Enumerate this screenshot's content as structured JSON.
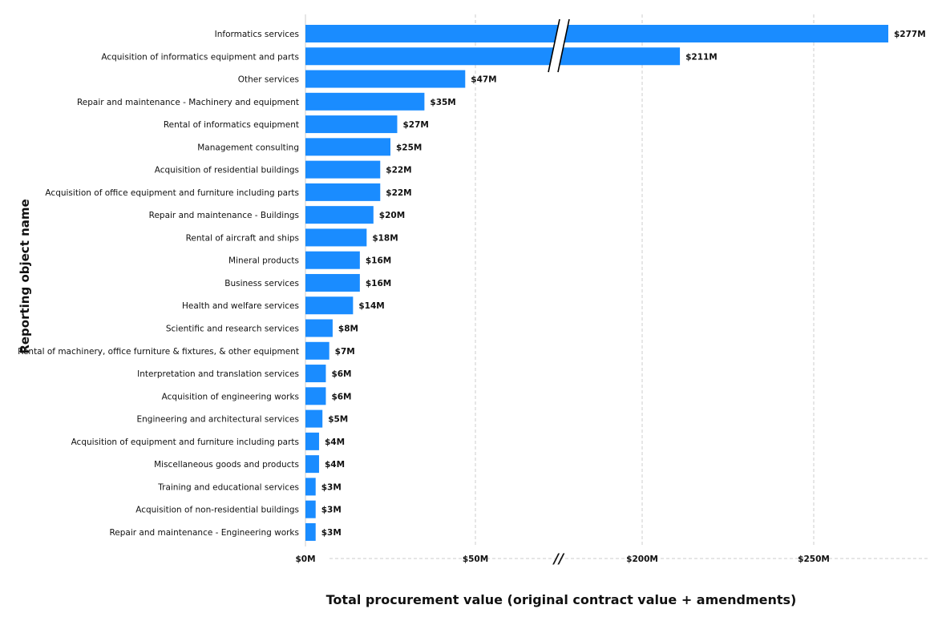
{
  "chart_data": {
    "type": "bar",
    "orientation": "horizontal",
    "xlabel": "Total procurement value (original contract value + amendments)",
    "ylabel": "Reporting object name",
    "axis_break": [
      75,
      175
    ],
    "xlim": [
      0,
      272
    ],
    "grid": true,
    "bar_color": "#1a8cff",
    "xticks": [
      {
        "value": 0,
        "label": "$0M"
      },
      {
        "value": 50,
        "label": "$50M"
      },
      {
        "value": 200,
        "label": "$200M"
      },
      {
        "value": 250,
        "label": "$250M"
      }
    ],
    "break_label": "//",
    "categories": [
      "Informatics services",
      "Acquisition of informatics equipment and parts",
      "Other services",
      "Repair and maintenance - Machinery and equipment",
      "Rental of informatics equipment",
      "Management consulting",
      "Acquisition of residential buildings",
      "Acquisition of office equipment and furniture including parts",
      "Repair and maintenance - Buildings",
      "Rental of aircraft and ships",
      "Mineral products",
      "Business services",
      "Health and welfare services",
      "Scientific and research services",
      "Rental of machinery, office furniture & fixtures, & other equipment",
      "Interpretation and translation services",
      "Acquisition of engineering works",
      "Engineering and architectural services",
      "Acquisition of equipment and furniture including parts",
      "Miscellaneous goods and products",
      "Training and educational services",
      "Acquisition of non-residential buildings",
      "Repair and maintenance - Engineering works"
    ],
    "values": [
      277,
      211,
      47,
      35,
      27,
      25,
      22,
      22,
      20,
      18,
      16,
      16,
      14,
      8,
      7,
      6,
      6,
      5,
      4,
      4,
      3,
      3,
      3
    ],
    "value_labels": [
      "$277M",
      "$211M",
      "$47M",
      "$35M",
      "$27M",
      "$25M",
      "$22M",
      "$22M",
      "$20M",
      "$18M",
      "$16M",
      "$16M",
      "$14M",
      "$8M",
      "$7M",
      "$6M",
      "$6M",
      "$5M",
      "$4M",
      "$4M",
      "$3M",
      "$3M",
      "$3M"
    ]
  }
}
